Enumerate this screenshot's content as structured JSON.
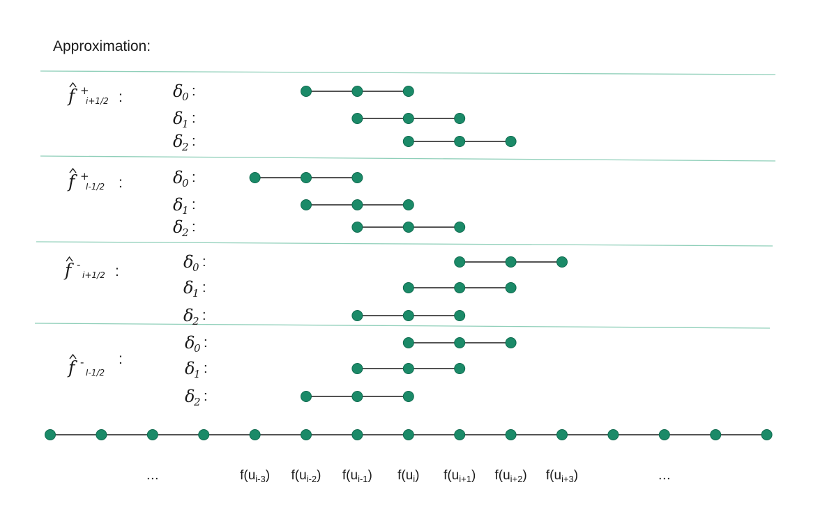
{
  "title": "Approximation:",
  "colors": {
    "node_fill": "#1b8a68",
    "node_stroke": "#0f6b4f",
    "separator": "#8fcfb9",
    "segment": "#1a1a1a"
  },
  "icons": {
    "node": "filled-circle"
  },
  "groups": [
    {
      "flux": {
        "base": "f",
        "sign": "+",
        "sub": "i+1/2",
        "colon": ":"
      },
      "stencils": [
        {
          "label": "δ",
          "sub": "0",
          "colon": ":",
          "nodes": [
            "i-2",
            "i-1",
            "i"
          ]
        },
        {
          "label": "δ",
          "sub": "1",
          "colon": ":",
          "nodes": [
            "i-1",
            "i",
            "i+1"
          ]
        },
        {
          "label": "δ",
          "sub": "2",
          "colon": ":",
          "nodes": [
            "i",
            "i+1",
            "i+2"
          ]
        }
      ]
    },
    {
      "flux": {
        "base": "f",
        "sign": "+",
        "sub": "I-1/2",
        "colon": ":"
      },
      "stencils": [
        {
          "label": "δ",
          "sub": "0",
          "colon": ":",
          "nodes": [
            "i-3",
            "i-2",
            "i-1"
          ]
        },
        {
          "label": "δ",
          "sub": "1",
          "colon": ":",
          "nodes": [
            "i-2",
            "i-1",
            "i"
          ]
        },
        {
          "label": "δ",
          "sub": "2",
          "colon": ":",
          "nodes": [
            "i-1",
            "i",
            "i+1"
          ]
        }
      ]
    },
    {
      "flux": {
        "base": "f",
        "sign": "-",
        "sub": "i+1/2",
        "colon": ":"
      },
      "stencils": [
        {
          "label": "δ",
          "sub": "0",
          "colon": ":",
          "nodes": [
            "i+1",
            "i+2",
            "i+3"
          ]
        },
        {
          "label": "δ",
          "sub": "1",
          "colon": ":",
          "nodes": [
            "i",
            "i+1",
            "i+2"
          ]
        },
        {
          "label": "δ",
          "sub": "2",
          "colon": ":",
          "nodes": [
            "i-1",
            "i",
            "i+1"
          ]
        }
      ]
    },
    {
      "flux": {
        "base": "f",
        "sign": "-",
        "sub": "I-1/2",
        "colon": ":"
      },
      "stencils": [
        {
          "label": "δ",
          "sub": "0",
          "colon": ":",
          "nodes": [
            "i",
            "i+1",
            "i+2"
          ]
        },
        {
          "label": "δ",
          "sub": "1",
          "colon": ":",
          "nodes": [
            "i-1",
            "i",
            "i+1"
          ]
        },
        {
          "label": "δ",
          "sub": "2",
          "colon": ":",
          "nodes": [
            "i-2",
            "i-1",
            "i"
          ]
        }
      ]
    }
  ],
  "axis": {
    "nodes": [
      "i-7",
      "i-6",
      "i-5",
      "i-4",
      "i-3",
      "i-2",
      "i-1",
      "i",
      "i+1",
      "i+2",
      "i+3",
      "i+4",
      "i+5",
      "i+6",
      "i+7"
    ],
    "labels": [
      {
        "node": "i-5",
        "text": "…",
        "base": "",
        "sub": "",
        "close": ""
      },
      {
        "node": "i-3",
        "text": "",
        "base": "f(u",
        "sub": "i-3",
        "close": ")"
      },
      {
        "node": "i-2",
        "text": "",
        "base": "f(u",
        "sub": "i-2",
        "close": ")"
      },
      {
        "node": "i-1",
        "text": "",
        "base": "f(u",
        "sub": "i-1",
        "close": ")"
      },
      {
        "node": "i",
        "text": "",
        "base": "f(u",
        "sub": "i",
        "close": ")"
      },
      {
        "node": "i+1",
        "text": "",
        "base": "f(u",
        "sub": "i+1",
        "close": ")"
      },
      {
        "node": "i+2",
        "text": "",
        "base": "f(u",
        "sub": "i+2",
        "close": ")"
      },
      {
        "node": "i+3",
        "text": "",
        "base": "f(u",
        "sub": "i+3",
        "close": ")"
      },
      {
        "node": "i+5",
        "text": "…",
        "base": "",
        "sub": "",
        "close": ""
      }
    ]
  }
}
